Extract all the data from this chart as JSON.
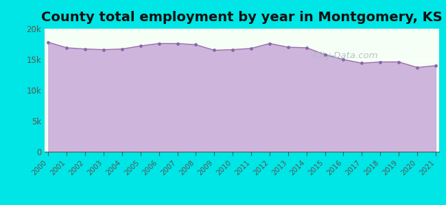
{
  "title": "County total employment by year in Montgomery, KS",
  "title_fontsize": 14,
  "title_fontweight": "bold",
  "background_color": "#00E5E5",
  "plot_bg_color": "#f5fff5",
  "fill_color": "#C8A8D8",
  "fill_alpha": 0.85,
  "line_color": "#9B72AA",
  "marker_color": "#8866AA",
  "years": [
    2000,
    2001,
    2002,
    2003,
    2004,
    2005,
    2006,
    2007,
    2008,
    2009,
    2010,
    2011,
    2012,
    2013,
    2014,
    2015,
    2016,
    2017,
    2018,
    2019,
    2020,
    2021
  ],
  "values": [
    17800,
    16900,
    16700,
    16600,
    16700,
    17200,
    17600,
    17600,
    17400,
    16500,
    16600,
    16800,
    17600,
    17000,
    16900,
    15800,
    15000,
    14400,
    14600,
    14600,
    13700,
    14000
  ],
  "ylim": [
    0,
    20000
  ],
  "yticks": [
    0,
    5000,
    10000,
    15000,
    20000
  ],
  "ytick_labels": [
    "0",
    "5k",
    "10k",
    "15k",
    "20k"
  ],
  "watermark": "City-Data.com",
  "tick_color": "#555555"
}
